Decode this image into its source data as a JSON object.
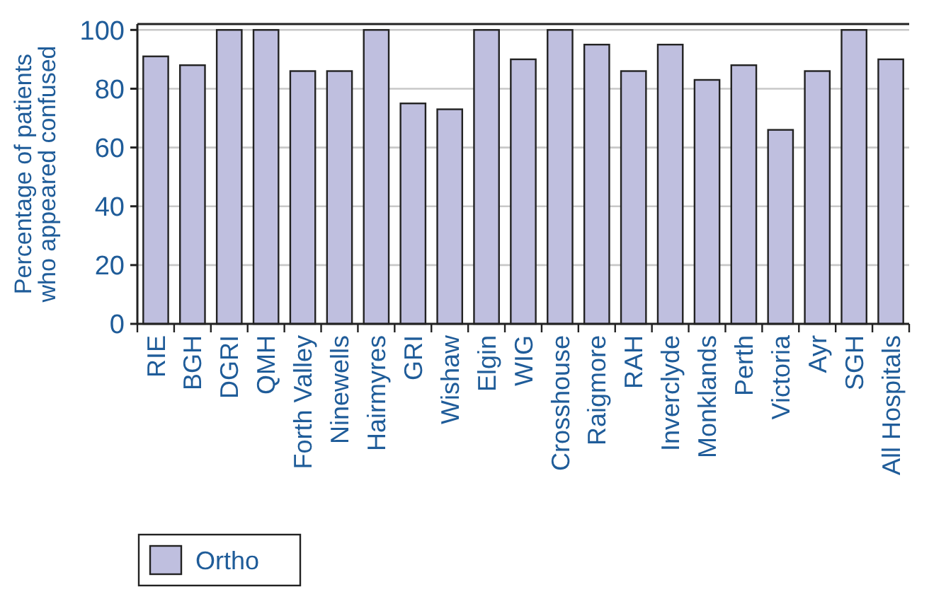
{
  "chart_data": {
    "type": "bar",
    "ylabel": "Percentage of patients\nwho appeared confused",
    "categories": [
      "RIE",
      "BGH",
      "DGRI",
      "QMH",
      "Forth Valley",
      "Ninewells",
      "Hairmyres",
      "GRI",
      "Wishaw",
      "Elgin",
      "WIG",
      "Crosshouse",
      "Raigmore",
      "RAH",
      "Inverclyde",
      "Monklands",
      "Perth",
      "Victoria",
      "Ayr",
      "SGH",
      "All Hospitals"
    ],
    "series": [
      {
        "name": "Ortho",
        "color": "#bfbfdf",
        "values": [
          91,
          88,
          100,
          100,
          86,
          86,
          100,
          75,
          73,
          100,
          90,
          100,
          95,
          86,
          95,
          83,
          88,
          66,
          86,
          100,
          90
        ]
      }
    ],
    "ylim": [
      0,
      102
    ],
    "yticks": [
      0,
      20,
      40,
      60,
      80,
      100
    ],
    "grid": "y",
    "legend": "bottom left"
  }
}
